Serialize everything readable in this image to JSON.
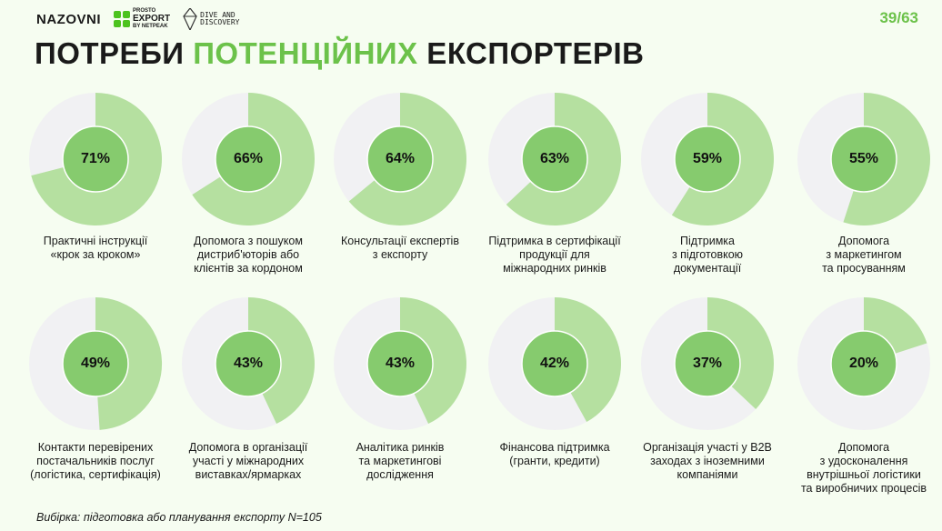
{
  "header": {
    "logos": [
      "NAZOVNI",
      "PROSTO EXPORT BY NETPEAK",
      "DIVE AND DISCOVERY"
    ],
    "logo_naz": "NAZOVNI",
    "logo_px_top": "PROSTO",
    "logo_px_main": "EXPORT",
    "logo_px_bottom": "BY NETPEAK",
    "logo_dd_1": "DIVE AND",
    "logo_dd_2": "DISCOVERY",
    "page_number": "39/63"
  },
  "title": {
    "part1": "ПОТРЕБИ ",
    "part2": "ПОТЕНЦІЙНИХ",
    "part3": " ЕКСПОРТЕРІВ"
  },
  "footer": "Вибірка: підготовка або планування експорту N=105",
  "colors": {
    "fill": "#b5e0a0",
    "rest": "#f1f1f3",
    "center": "#86cb6e",
    "accent": "#6cc24a"
  },
  "chart_data": {
    "type": "pie",
    "variant": "donut",
    "unit": "%",
    "items": [
      {
        "value": 71,
        "label_text": "71%",
        "label": "Практичні інструкції\n«крок за кроком»"
      },
      {
        "value": 66,
        "label_text": "66%",
        "label": "Допомога з пошуком\nдистриб'юторів або\nклієнтів за кордоном"
      },
      {
        "value": 64,
        "label_text": "64%",
        "label": "Консультації експертів\nз експорту"
      },
      {
        "value": 63,
        "label_text": "63%",
        "label": "Підтримка в сертифікації\nпродукції для\nміжнародних ринків"
      },
      {
        "value": 59,
        "label_text": "59%",
        "label": "Підтримка\nз підготовкою\nдокументації"
      },
      {
        "value": 55,
        "label_text": "55%",
        "label": "Допомога\nз маркетингом\nта просуванням"
      },
      {
        "value": 49,
        "label_text": "49%",
        "label": "Контакти перевірених\nпостачальників послуг\n(логістика, сертифікація)"
      },
      {
        "value": 43,
        "label_text": "43%",
        "label": "Допомога в організації\nучасті у міжнародних\nвиставках/ярмарках"
      },
      {
        "value": 43,
        "label_text": "43%",
        "label": "Аналітика ринків\nта маркетингові\nдослідження"
      },
      {
        "value": 42,
        "label_text": "42%",
        "label": "Фінансова підтримка\n(гранти, кредити)"
      },
      {
        "value": 37,
        "label_text": "37%",
        "label": "Організація участі у B2B\nзаходах з іноземними\nкомпаніями"
      },
      {
        "value": 20,
        "label_text": "20%",
        "label": "Допомога\nз удосконалення\nвнутрішньої логістики\nта виробничих процесів"
      }
    ]
  }
}
